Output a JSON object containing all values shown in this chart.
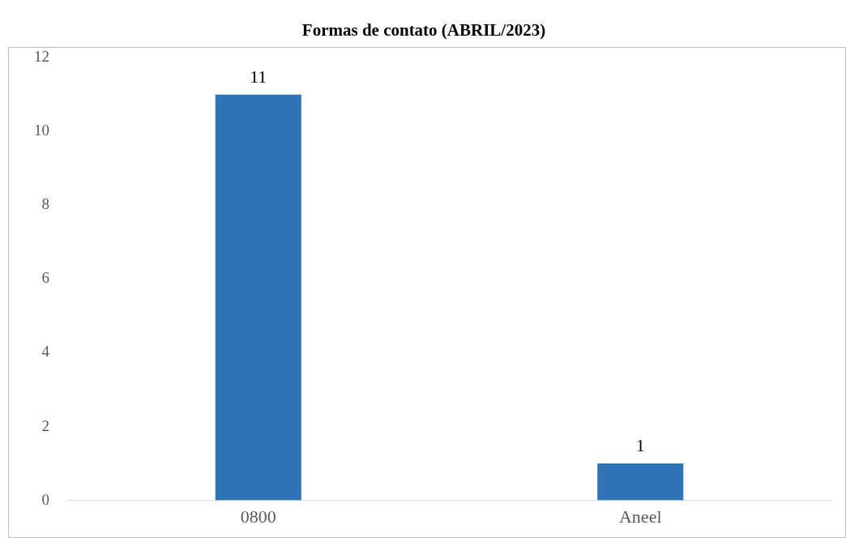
{
  "chart_data": {
    "type": "bar",
    "title": "Formas de contato (ABRIL/2023)",
    "categories": [
      "0800",
      "Aneel"
    ],
    "values": [
      11,
      1
    ],
    "color": "#2e75b6",
    "ylim": [
      0,
      12
    ],
    "yticks": [
      0,
      2,
      4,
      6,
      8,
      10,
      12
    ],
    "grid": false,
    "legend": false,
    "data_labels": true
  }
}
